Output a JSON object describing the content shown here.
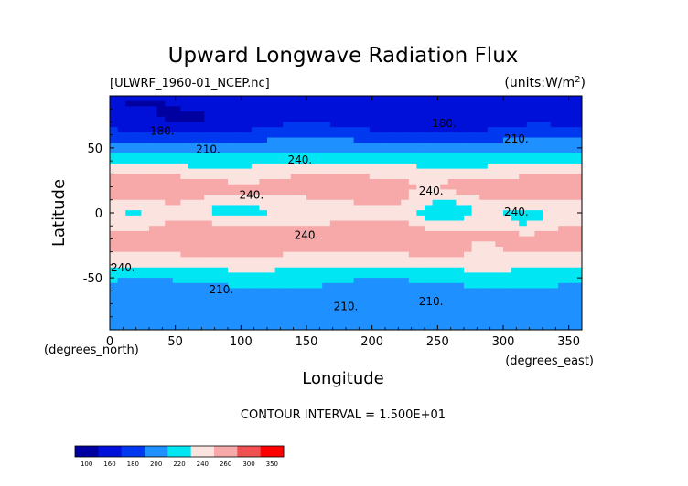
{
  "chart_data": {
    "type": "heatmap",
    "title": "Upward Longwave Radiation Flux",
    "file_label": "[ULWRF_1960-01_NCEP.nc]",
    "units_label": "(units:W/m^2)",
    "xlabel": "Longitude",
    "ylabel": "Latitude",
    "x_unit_label": "(degrees_east)",
    "y_unit_label": "(degrees_north)",
    "xlim": [
      0,
      360
    ],
    "ylim": [
      -90,
      90
    ],
    "x_ticks": [
      0,
      50,
      100,
      150,
      200,
      250,
      300,
      350
    ],
    "y_ticks": [
      -50,
      0,
      50
    ],
    "contour_interval_text": "CONTOUR INTERVAL = 1.500E+01",
    "contour_labels": [
      {
        "text": "180.",
        "x": 40,
        "y": 60
      },
      {
        "text": "180.",
        "x": 255,
        "y": 66
      },
      {
        "text": "210.",
        "x": 75,
        "y": 46
      },
      {
        "text": "210.",
        "x": 310,
        "y": 54
      },
      {
        "text": "240.",
        "x": 145,
        "y": 38
      },
      {
        "text": "240.",
        "x": 108,
        "y": 11
      },
      {
        "text": "240.",
        "x": 150,
        "y": -20
      },
      {
        "text": "240.",
        "x": 245,
        "y": 14
      },
      {
        "text": "240.",
        "x": 310,
        "y": -2
      },
      {
        "text": "240.",
        "x": 10,
        "y": -45
      },
      {
        "text": "210.",
        "x": 85,
        "y": -62
      },
      {
        "text": "210.",
        "x": 180,
        "y": -75
      },
      {
        "text": "210.",
        "x": 245,
        "y": -71
      }
    ],
    "colorbar": {
      "tick_labels": [
        "100",
        "160",
        "180",
        "200",
        "220",
        "240",
        "260",
        "300",
        "350"
      ],
      "colors": [
        "#0000a0",
        "#0010d8",
        "#0038f0",
        "#1e90ff",
        "#00e6f2",
        "#fbe3e0",
        "#f7a8a8",
        "#ef5050",
        "#ff0000"
      ]
    },
    "approx_zonal_profile": [
      {
        "lat": 85,
        "flux": 165
      },
      {
        "lat": 65,
        "flux": 185
      },
      {
        "lat": 50,
        "flux": 210
      },
      {
        "lat": 40,
        "flux": 235
      },
      {
        "lat": 20,
        "flux": 270
      },
      {
        "lat": 0,
        "flux": 250
      },
      {
        "lat": -20,
        "flux": 275
      },
      {
        "lat": -35,
        "flux": 255
      },
      {
        "lat": -50,
        "flux": 225
      },
      {
        "lat": -65,
        "flux": 210
      },
      {
        "lat": -85,
        "flux": 205
      }
    ]
  }
}
